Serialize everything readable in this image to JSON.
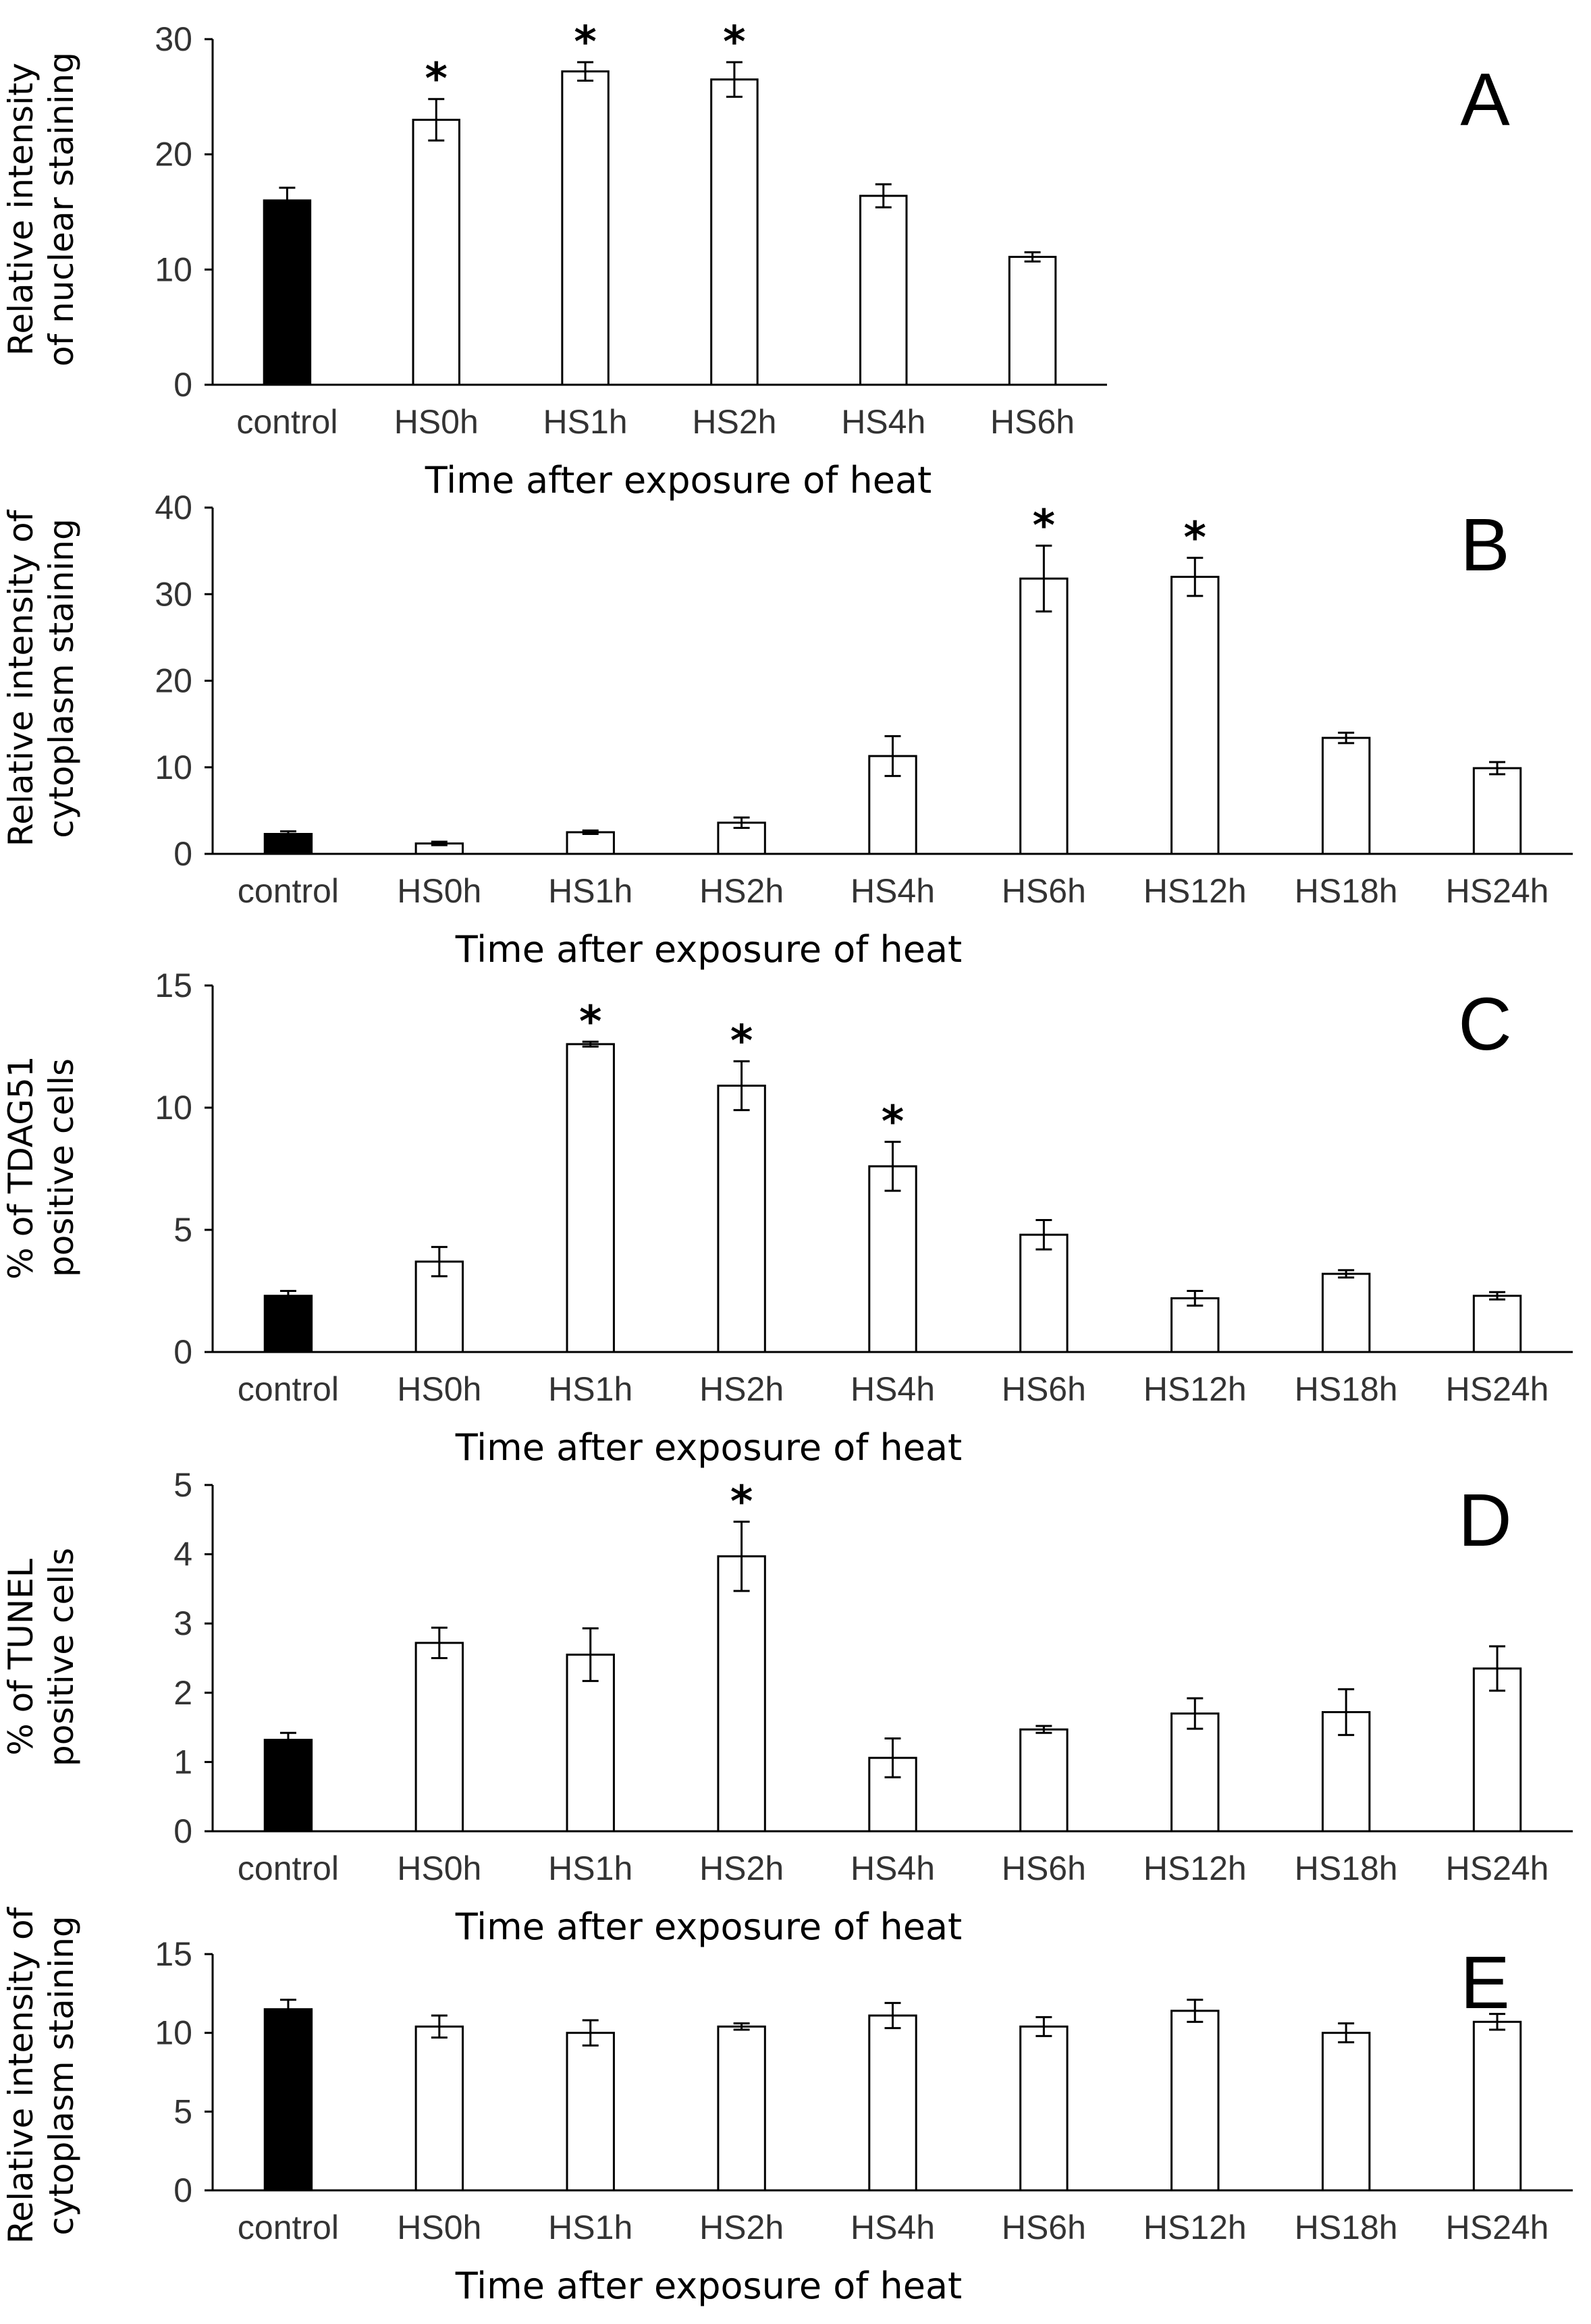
{
  "colors": {
    "control_fill": "#000000",
    "bar_fill": "#ffffff",
    "axis": "#000000"
  },
  "chart_data": [
    {
      "type": "bar",
      "panel_label": "A",
      "categories": [
        "control",
        "HS0h",
        "HS1h",
        "HS2h",
        "HS4h",
        "HS6h"
      ],
      "values": [
        16.0,
        23.0,
        27.2,
        26.5,
        16.4,
        11.1
      ],
      "errors": [
        1.1,
        1.8,
        0.8,
        1.5,
        1.0,
        0.4
      ],
      "significant": [
        false,
        true,
        true,
        true,
        false,
        false
      ],
      "ylabel_lines": [
        "Relative intensity",
        "of nuclear staining"
      ],
      "xlabel": "Time after exposure of heat",
      "ylim": [
        0,
        30
      ],
      "yticks": [
        0,
        10,
        20,
        30
      ],
      "significance_marker": "*"
    },
    {
      "type": "bar",
      "panel_label": "B",
      "categories": [
        "control",
        "HS0h",
        "HS1h",
        "HS2h",
        "HS4h",
        "HS6h",
        "HS12h",
        "HS18h",
        "HS24h"
      ],
      "values": [
        2.3,
        1.2,
        2.5,
        3.6,
        11.3,
        31.8,
        32.0,
        13.4,
        9.9
      ],
      "errors": [
        0.3,
        0.2,
        0.2,
        0.6,
        2.3,
        3.8,
        2.2,
        0.6,
        0.7
      ],
      "significant": [
        false,
        false,
        false,
        false,
        false,
        true,
        true,
        false,
        false
      ],
      "ylabel_lines": [
        "Relative intensity of",
        "cytoplasm staining"
      ],
      "xlabel": "Time after exposure of heat",
      "ylim": [
        0,
        40
      ],
      "yticks": [
        0,
        10,
        20,
        30,
        40
      ],
      "significance_marker": "*"
    },
    {
      "type": "bar",
      "panel_label": "C",
      "categories": [
        "control",
        "HS0h",
        "HS1h",
        "HS2h",
        "HS4h",
        "HS6h",
        "HS12h",
        "HS18h",
        "HS24h"
      ],
      "values": [
        2.3,
        3.7,
        12.6,
        10.9,
        7.6,
        4.8,
        2.2,
        3.2,
        2.3
      ],
      "errors": [
        0.2,
        0.6,
        0.1,
        1.0,
        1.0,
        0.6,
        0.3,
        0.15,
        0.15
      ],
      "significant": [
        false,
        false,
        true,
        true,
        true,
        false,
        false,
        false,
        false
      ],
      "ylabel_lines": [
        "% of TDAG51",
        "positive cells"
      ],
      "xlabel": "Time after exposure of heat",
      "ylim": [
        0,
        15
      ],
      "yticks": [
        0,
        5,
        10,
        15
      ],
      "significance_marker": "*"
    },
    {
      "type": "bar",
      "panel_label": "D",
      "categories": [
        "control",
        "HS0h",
        "HS1h",
        "HS2h",
        "HS4h",
        "HS6h",
        "HS12h",
        "HS18h",
        "HS24h"
      ],
      "values": [
        1.32,
        2.72,
        2.55,
        3.97,
        1.06,
        1.47,
        1.7,
        1.72,
        2.35
      ],
      "errors": [
        0.1,
        0.22,
        0.38,
        0.5,
        0.28,
        0.05,
        0.22,
        0.33,
        0.32
      ],
      "significant": [
        false,
        false,
        false,
        true,
        false,
        false,
        false,
        false,
        false
      ],
      "ylabel_lines": [
        "% of TUNEL",
        "positive cells"
      ],
      "xlabel": "Time after exposure of heat",
      "ylim": [
        0,
        5
      ],
      "yticks": [
        0,
        1,
        2,
        3,
        4,
        5
      ],
      "significance_marker": "*"
    },
    {
      "type": "bar",
      "panel_label": "E",
      "categories": [
        "control",
        "HS0h",
        "HS1h",
        "HS2h",
        "HS4h",
        "HS6h",
        "HS12h",
        "HS18h",
        "HS24h"
      ],
      "values": [
        11.5,
        10.4,
        10.0,
        10.4,
        11.1,
        10.4,
        11.4,
        10.0,
        10.7
      ],
      "errors": [
        0.6,
        0.7,
        0.8,
        0.2,
        0.8,
        0.6,
        0.7,
        0.6,
        0.5
      ],
      "significant": [
        false,
        false,
        false,
        false,
        false,
        false,
        false,
        false,
        false
      ],
      "ylabel_lines": [
        "Relative intensity of",
        "cytoplasm staining"
      ],
      "xlabel": "Time after exposure of heat",
      "ylim": [
        0,
        15
      ],
      "yticks": [
        0,
        5,
        10,
        15
      ],
      "significance_marker": "*"
    }
  ]
}
